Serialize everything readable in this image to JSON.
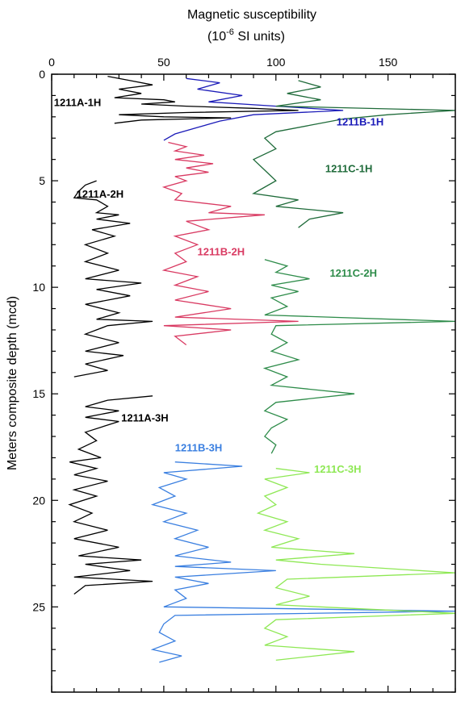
{
  "chart_data": {
    "type": "line",
    "title_line1": "Magnetic susceptibility",
    "title_line2_prefix": "(10",
    "title_line2_exp": "-6",
    "title_line2_suffix": " SI units)",
    "ylabel": "Meters composite depth (mcd)",
    "xlim": [
      0,
      180
    ],
    "ylim": [
      0,
      29
    ],
    "y_inverted": true,
    "x_ticks": [
      0,
      50,
      100,
      150
    ],
    "y_ticks": [
      0,
      5,
      10,
      15,
      20,
      25
    ],
    "grid": false,
    "series": [
      {
        "name": "1211A-1H",
        "color": "#000000",
        "points": [
          [
            25,
            0.1
          ],
          [
            35,
            0.3
          ],
          [
            45,
            0.5
          ],
          [
            30,
            0.7
          ],
          [
            40,
            0.9
          ],
          [
            28,
            1.1
          ],
          [
            50,
            1.2
          ],
          [
            55,
            1.3
          ],
          [
            40,
            1.4
          ],
          [
            60,
            1.5
          ],
          [
            90,
            1.6
          ],
          [
            110,
            1.7
          ],
          [
            60,
            1.8
          ],
          [
            30,
            1.9
          ],
          [
            50,
            2.0
          ],
          [
            80,
            2.05
          ],
          [
            40,
            2.15
          ],
          [
            28,
            2.3
          ]
        ]
      },
      {
        "name": "1211A-2H",
        "color": "#000000",
        "points": [
          [
            20,
            5.0
          ],
          [
            15,
            5.2
          ],
          [
            12,
            5.5
          ],
          [
            10,
            5.8
          ],
          [
            20,
            5.9
          ],
          [
            25,
            6.2
          ],
          [
            20,
            6.5
          ],
          [
            30,
            6.6
          ],
          [
            20,
            6.8
          ],
          [
            35,
            7.0
          ],
          [
            18,
            7.3
          ],
          [
            28,
            7.6
          ],
          [
            15,
            8.0
          ],
          [
            25,
            8.4
          ],
          [
            15,
            8.8
          ],
          [
            30,
            9.2
          ],
          [
            15,
            9.6
          ],
          [
            40,
            9.8
          ],
          [
            20,
            10.1
          ],
          [
            35,
            10.4
          ],
          [
            15,
            10.8
          ],
          [
            30,
            11.2
          ],
          [
            20,
            11.5
          ],
          [
            45,
            11.6
          ],
          [
            25,
            11.8
          ],
          [
            15,
            12.2
          ],
          [
            30,
            12.6
          ],
          [
            15,
            13.0
          ],
          [
            32,
            13.2
          ],
          [
            15,
            13.6
          ],
          [
            25,
            13.9
          ],
          [
            10,
            14.2
          ]
        ]
      },
      {
        "name": "1211A-3H",
        "color": "#000000",
        "points": [
          [
            45,
            15.1
          ],
          [
            25,
            15.3
          ],
          [
            15,
            15.6
          ],
          [
            30,
            15.8
          ],
          [
            15,
            16.1
          ],
          [
            30,
            16.3
          ],
          [
            15,
            16.8
          ],
          [
            20,
            17.2
          ],
          [
            12,
            17.6
          ],
          [
            22,
            18.0
          ],
          [
            8,
            18.2
          ],
          [
            20,
            18.5
          ],
          [
            10,
            18.8
          ],
          [
            25,
            19.1
          ],
          [
            10,
            19.5
          ],
          [
            20,
            19.8
          ],
          [
            8,
            20.2
          ],
          [
            18,
            20.6
          ],
          [
            10,
            21.0
          ],
          [
            25,
            21.4
          ],
          [
            10,
            21.8
          ],
          [
            30,
            22.2
          ],
          [
            12,
            22.6
          ],
          [
            40,
            22.8
          ],
          [
            15,
            23.0
          ],
          [
            35,
            23.3
          ],
          [
            10,
            23.6
          ],
          [
            45,
            23.8
          ],
          [
            15,
            24.0
          ],
          [
            10,
            24.4
          ]
        ]
      },
      {
        "name": "1211B-1H",
        "color": "#1a1ab8",
        "points": [
          [
            60,
            0.2
          ],
          [
            75,
            0.4
          ],
          [
            65,
            0.7
          ],
          [
            85,
            1.0
          ],
          [
            70,
            1.3
          ],
          [
            100,
            1.5
          ],
          [
            130,
            1.7
          ],
          [
            90,
            1.9
          ],
          [
            75,
            2.2
          ],
          [
            65,
            2.5
          ],
          [
            55,
            2.8
          ],
          [
            50,
            3.1
          ]
        ]
      },
      {
        "name": "1211B-2H",
        "color": "#d93a62",
        "points": [
          [
            52,
            3.2
          ],
          [
            60,
            3.4
          ],
          [
            55,
            3.6
          ],
          [
            68,
            3.8
          ],
          [
            55,
            4.0
          ],
          [
            72,
            4.2
          ],
          [
            60,
            4.4
          ],
          [
            70,
            4.6
          ],
          [
            55,
            4.8
          ],
          [
            60,
            5.0
          ],
          [
            50,
            5.3
          ],
          [
            58,
            5.6
          ],
          [
            55,
            5.9
          ],
          [
            80,
            6.2
          ],
          [
            70,
            6.5
          ],
          [
            95,
            6.6
          ],
          [
            60,
            6.9
          ],
          [
            70,
            7.3
          ],
          [
            55,
            7.6
          ],
          [
            65,
            8.0
          ],
          [
            55,
            8.4
          ],
          [
            60,
            8.8
          ],
          [
            50,
            9.2
          ],
          [
            65,
            9.5
          ],
          [
            55,
            9.9
          ],
          [
            70,
            10.2
          ],
          [
            55,
            10.6
          ],
          [
            80,
            11.0
          ],
          [
            55,
            11.4
          ],
          [
            110,
            11.6
          ],
          [
            50,
            11.8
          ],
          [
            80,
            12.0
          ],
          [
            55,
            12.3
          ],
          [
            60,
            12.7
          ]
        ]
      },
      {
        "name": "1211B-3H",
        "color": "#3a7fe0",
        "points": [
          [
            55,
            18.2
          ],
          [
            85,
            18.4
          ],
          [
            50,
            18.7
          ],
          [
            60,
            19.0
          ],
          [
            48,
            19.4
          ],
          [
            55,
            19.8
          ],
          [
            45,
            20.2
          ],
          [
            60,
            20.6
          ],
          [
            50,
            21.0
          ],
          [
            65,
            21.4
          ],
          [
            55,
            21.8
          ],
          [
            70,
            22.2
          ],
          [
            55,
            22.6
          ],
          [
            80,
            22.9
          ],
          [
            55,
            23.1
          ],
          [
            100,
            23.3
          ],
          [
            55,
            23.6
          ],
          [
            70,
            23.9
          ],
          [
            55,
            24.2
          ],
          [
            60,
            24.6
          ],
          [
            50,
            25.0
          ],
          [
            180,
            25.2
          ],
          [
            55,
            25.4
          ],
          [
            50,
            25.8
          ],
          [
            48,
            26.2
          ],
          [
            55,
            26.6
          ],
          [
            45,
            27.0
          ],
          [
            58,
            27.3
          ],
          [
            48,
            27.6
          ]
        ]
      },
      {
        "name": "1211C-1H",
        "color": "#1f6b3a",
        "points": [
          [
            110,
            0.3
          ],
          [
            120,
            0.6
          ],
          [
            105,
            0.9
          ],
          [
            120,
            1.2
          ],
          [
            100,
            1.5
          ],
          [
            180,
            1.7
          ],
          [
            150,
            1.9
          ],
          [
            130,
            2.1
          ],
          [
            115,
            2.4
          ],
          [
            100,
            2.7
          ],
          [
            95,
            3.0
          ],
          [
            100,
            3.5
          ],
          [
            90,
            4.0
          ],
          [
            95,
            4.5
          ],
          [
            100,
            5.0
          ],
          [
            95,
            5.3
          ],
          [
            90,
            5.6
          ],
          [
            110,
            5.9
          ],
          [
            100,
            6.2
          ],
          [
            130,
            6.5
          ],
          [
            115,
            6.8
          ],
          [
            110,
            7.2
          ]
        ]
      },
      {
        "name": "1211C-2H",
        "color": "#2e8c4a",
        "points": [
          [
            95,
            8.7
          ],
          [
            105,
            9.0
          ],
          [
            100,
            9.3
          ],
          [
            115,
            9.6
          ],
          [
            98,
            9.9
          ],
          [
            110,
            10.2
          ],
          [
            98,
            10.5
          ],
          [
            105,
            10.9
          ],
          [
            95,
            11.3
          ],
          [
            180,
            11.6
          ],
          [
            100,
            11.8
          ],
          [
            98,
            12.2
          ],
          [
            105,
            12.6
          ],
          [
            98,
            13.0
          ],
          [
            110,
            13.4
          ],
          [
            95,
            13.8
          ],
          [
            105,
            14.2
          ],
          [
            98,
            14.6
          ],
          [
            135,
            15.0
          ],
          [
            100,
            15.4
          ],
          [
            95,
            15.8
          ],
          [
            105,
            16.2
          ],
          [
            98,
            16.6
          ],
          [
            95,
            17.0
          ],
          [
            100,
            17.4
          ],
          [
            98,
            17.8
          ]
        ]
      },
      {
        "name": "1211C-3H",
        "color": "#8ee854",
        "points": [
          [
            100,
            18.5
          ],
          [
            115,
            18.7
          ],
          [
            95,
            19.0
          ],
          [
            105,
            19.4
          ],
          [
            95,
            19.8
          ],
          [
            100,
            20.2
          ],
          [
            92,
            20.6
          ],
          [
            105,
            21.0
          ],
          [
            95,
            21.4
          ],
          [
            110,
            21.8
          ],
          [
            98,
            22.2
          ],
          [
            135,
            22.5
          ],
          [
            100,
            22.8
          ],
          [
            120,
            23.0
          ],
          [
            180,
            23.4
          ],
          [
            105,
            23.7
          ],
          [
            100,
            24.1
          ],
          [
            115,
            24.5
          ],
          [
            100,
            24.9
          ],
          [
            180,
            25.3
          ],
          [
            100,
            25.6
          ],
          [
            95,
            26.0
          ],
          [
            105,
            26.4
          ],
          [
            95,
            26.8
          ],
          [
            135,
            27.1
          ],
          [
            100,
            27.5
          ]
        ]
      }
    ],
    "labels": [
      {
        "text": "1211A-1H",
        "x": 1,
        "y": 1.5,
        "color": "#000000"
      },
      {
        "text": "1211A-2H",
        "x": 11,
        "y": 5.8,
        "color": "#000000"
      },
      {
        "text": "1211A-3H",
        "x": 31,
        "y": 16.3,
        "color": "#000000"
      },
      {
        "text": "1211B-1H",
        "x": 127,
        "y": 2.4,
        "color": "#1a1ab8"
      },
      {
        "text": "1211B-2H",
        "x": 65,
        "y": 8.5,
        "color": "#d93a62"
      },
      {
        "text": "1211B-3H",
        "x": 55,
        "y": 17.7,
        "color": "#3a7fe0"
      },
      {
        "text": "1211C-1H",
        "x": 122,
        "y": 4.6,
        "color": "#1f6b3a"
      },
      {
        "text": "1211C-2H",
        "x": 124,
        "y": 9.5,
        "color": "#2e8c4a"
      },
      {
        "text": "1211C-3H",
        "x": 117,
        "y": 18.7,
        "color": "#8ee854"
      }
    ]
  }
}
